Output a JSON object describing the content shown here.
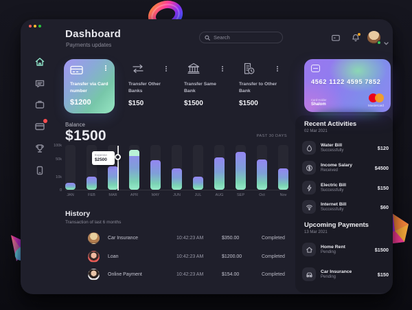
{
  "window": {
    "traffic_colors": [
      "#ff5f57",
      "#febc2e",
      "#28c840"
    ]
  },
  "header": {
    "title": "Dashboard",
    "subtitle": "Payments updates",
    "search_placeholder": "Search"
  },
  "sidebar": {
    "items": [
      "home",
      "messages",
      "briefcase",
      "cards",
      "rewards",
      "mobile"
    ],
    "active": "home",
    "notification_on": "cards"
  },
  "transfer_cards": [
    {
      "label": "Transfer via Card number",
      "amount": "$1200"
    },
    {
      "label": "Transfer Other Banks",
      "amount": "$150"
    },
    {
      "label": "Transfer Same Bank",
      "amount": "$1500"
    },
    {
      "label": "Transfer to Other Bank",
      "amount": "$1500"
    }
  ],
  "credit_card": {
    "number": "4562 1122 4595 7852",
    "holder_label": "Card Holder",
    "holder_name": "Shalom",
    "brand": "Mastercard"
  },
  "balance": {
    "label": "Balance",
    "value": "$1500",
    "period": "PAST 30 DAYS"
  },
  "chart_data": {
    "type": "bar",
    "title": "Balance",
    "period": "PAST 30 DAYS",
    "categories": [
      "JAN",
      "FEB",
      "MAR",
      "APR",
      "MAY",
      "JUN",
      "JUL",
      "AUG",
      "SEP",
      "Oct",
      "Nov"
    ],
    "values": [
      15,
      30,
      52,
      90,
      66,
      48,
      29,
      72,
      85,
      68,
      48
    ],
    "units": "percent of axis height (axis max 100k)",
    "y_ticks": [
      "100k",
      "50k",
      "10k",
      "0"
    ],
    "grid": false,
    "legend": "none",
    "highlight": {
      "index": 3
    },
    "tooltip": {
      "label": "Expense",
      "value": "$2500",
      "attached_to": "MAR"
    },
    "bar_gradient": [
      "#9486f2",
      "#97ecc9"
    ]
  },
  "history": {
    "title": "History",
    "subtitle": "Transaction of last 6 months",
    "rows": [
      {
        "name": "Car Insurance",
        "time": "10:42:23 AM",
        "amount": "$350.00",
        "status": "Completed"
      },
      {
        "name": "Loan",
        "time": "10:42:23 AM",
        "amount": "$1200.00",
        "status": "Completed"
      },
      {
        "name": "Online Payment",
        "time": "10:42:23 AM",
        "amount": "$154.00",
        "status": "Completed"
      }
    ]
  },
  "recent_activities": {
    "title": "Recent Activities",
    "date": "02 Mar 2021",
    "items": [
      {
        "title": "Water Bill",
        "subtitle": "Successfully",
        "amount": "$120"
      },
      {
        "title": "Income Salary",
        "subtitle": "Received",
        "amount": "$4500"
      },
      {
        "title": "Electric Bill",
        "subtitle": "Successfully",
        "amount": "$150"
      },
      {
        "title": "Internet Bill",
        "subtitle": "Successfully",
        "amount": "$60"
      }
    ]
  },
  "upcoming_payments": {
    "title": "Upcoming Payments",
    "date": "13 Mar 2021",
    "items": [
      {
        "title": "Home Rent",
        "subtitle": "Pending",
        "amount": "$1500"
      },
      {
        "title": "Car Insurance",
        "subtitle": "Pending",
        "amount": "$150"
      }
    ]
  },
  "colors": {
    "panel_bg": "#1f1f2b",
    "accent_teal": "#8fe3c8",
    "accent_purple": "#9486f2",
    "alert_red": "#ff4d4f",
    "notify_orange": "#f5a623",
    "online_green": "#35c759",
    "mastercard_red": "#eb001b",
    "mastercard_orange": "#f79e1b"
  }
}
